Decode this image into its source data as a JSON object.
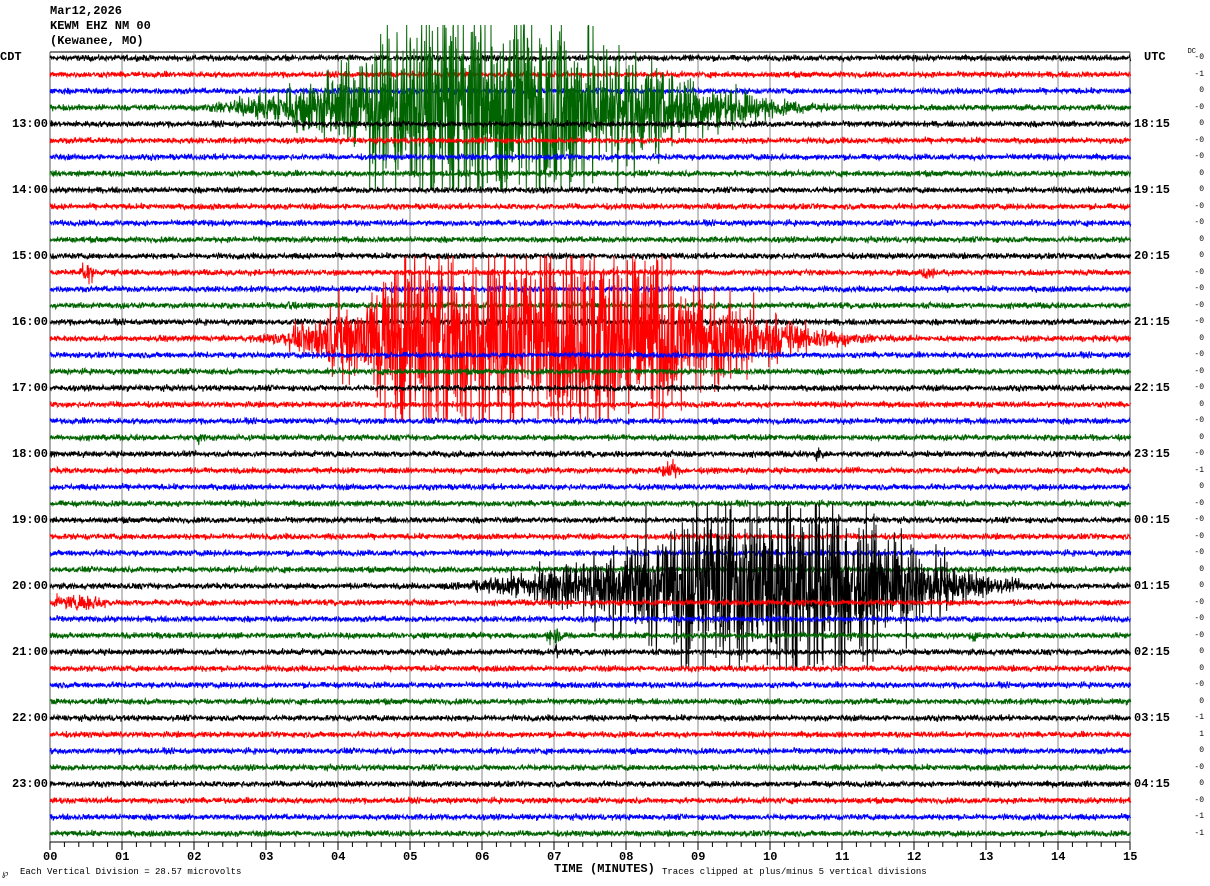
{
  "header": {
    "date": "Mar12,2026",
    "station": "KEWM EHZ NM 00",
    "location": "(Kewanee, MO)"
  },
  "left_timezone": "CDT",
  "right_timezone": "UTC",
  "dc_label": "DC",
  "footer": {
    "corner_mark": "℘",
    "division_text": "Each Vertical Division =   28.57 microvolts",
    "clip_text": "Traces clipped at plus/minus 5 vertical divisions"
  },
  "chart_data": {
    "type": "line",
    "subtype": "helicorder",
    "xlabel": "TIME (MINUTES)",
    "x_ticks": [
      "00",
      "01",
      "02",
      "03",
      "04",
      "05",
      "06",
      "07",
      "08",
      "09",
      "10",
      "11",
      "12",
      "13",
      "14",
      "15"
    ],
    "xlim": [
      0,
      15
    ],
    "grid": "vertical lines every minute",
    "trace_colors": [
      "#000000",
      "#ff0000",
      "#0000ff",
      "#006400"
    ],
    "rows_per_hour": 4,
    "left_hour_labels": [
      "13:00",
      "14:00",
      "15:00",
      "16:00",
      "17:00",
      "18:00",
      "19:00",
      "20:00",
      "21:00",
      "22:00",
      "23:00"
    ],
    "right_hour_labels": [
      "18:15",
      "19:15",
      "20:15",
      "21:15",
      "22:15",
      "23:15",
      "00:15",
      "01:15",
      "02:15",
      "03:15",
      "04:15"
    ],
    "dc_offsets": [
      "-0",
      "-1",
      "0",
      "-0",
      "0",
      "-0",
      "-0",
      "0",
      "0",
      "-0",
      "-0",
      "0",
      "0",
      "-0",
      "-0",
      "-0",
      "-0",
      "0",
      "-0",
      "-0",
      "-0",
      "0",
      "-0",
      "0",
      "-0",
      "-1",
      "0",
      "-0",
      "-0",
      "-0",
      "-0",
      "0",
      "0",
      "-0",
      "-0",
      "-0",
      "0",
      "0",
      "-0",
      "0",
      "-1",
      "1",
      "0",
      "-0",
      "0",
      "-0",
      "-1",
      "-1"
    ],
    "clip_divisions": 5,
    "noise_divisions": 0.12,
    "events": [
      {
        "row": 3,
        "start_min": 1.6,
        "peak_start_min": 5.3,
        "peak_end_min": 6.9,
        "end_min": 11.5,
        "peak_divisions": 6
      },
      {
        "row": 17,
        "start_min": 2.6,
        "peak_start_min": 5.0,
        "peak_end_min": 8.0,
        "end_min": 12.2,
        "peak_divisions": 6
      },
      {
        "row": 32,
        "start_min": 5.0,
        "peak_start_min": 9.3,
        "peak_end_min": 10.8,
        "end_min": 14.3,
        "peak_divisions": 5.5
      },
      {
        "row": 13,
        "start_min": 0.35,
        "peak_start_min": 0.45,
        "peak_end_min": 0.55,
        "end_min": 0.7,
        "peak_divisions": 0.5
      },
      {
        "row": 13,
        "start_min": 12.05,
        "peak_start_min": 12.15,
        "peak_end_min": 12.25,
        "end_min": 12.35,
        "peak_divisions": 0.3
      },
      {
        "row": 15,
        "start_min": 3.2,
        "peak_start_min": 3.3,
        "peak_end_min": 3.35,
        "end_min": 3.45,
        "peak_divisions": 0.3
      },
      {
        "row": 23,
        "start_min": 2.0,
        "peak_start_min": 2.05,
        "peak_end_min": 2.1,
        "end_min": 2.2,
        "peak_divisions": 0.3
      },
      {
        "row": 24,
        "start_min": 10.6,
        "peak_start_min": 10.65,
        "peak_end_min": 10.7,
        "end_min": 10.8,
        "peak_divisions": 0.4
      },
      {
        "row": 25,
        "start_min": 8.4,
        "peak_start_min": 8.55,
        "peak_end_min": 8.65,
        "end_min": 8.8,
        "peak_divisions": 0.5
      },
      {
        "row": 33,
        "start_min": 0.0,
        "peak_start_min": 0.1,
        "peak_end_min": 0.7,
        "end_min": 1.0,
        "peak_divisions": 0.25
      },
      {
        "row": 35,
        "start_min": 6.8,
        "peak_start_min": 6.95,
        "peak_end_min": 7.05,
        "end_min": 7.2,
        "peak_divisions": 0.4
      },
      {
        "row": 35,
        "start_min": 12.7,
        "peak_start_min": 12.8,
        "peak_end_min": 12.85,
        "end_min": 12.95,
        "peak_divisions": 0.3
      },
      {
        "row": 36,
        "start_min": 7.0,
        "peak_start_min": 7.02,
        "peak_end_min": 7.05,
        "end_min": 7.1,
        "peak_divisions": 0.4
      }
    ]
  }
}
